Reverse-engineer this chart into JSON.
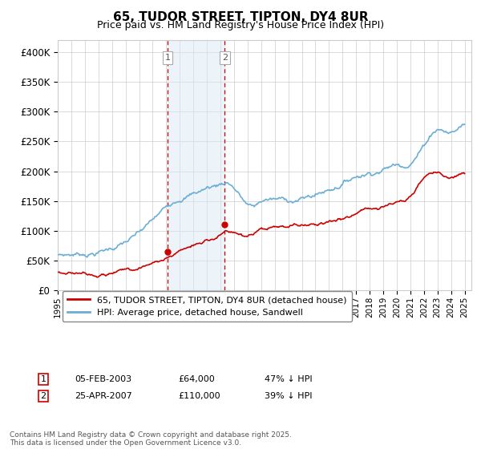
{
  "title": "65, TUDOR STREET, TIPTON, DY4 8UR",
  "subtitle": "Price paid vs. HM Land Registry's House Price Index (HPI)",
  "hpi_label": "HPI: Average price, detached house, Sandwell",
  "price_label": "65, TUDOR STREET, TIPTON, DY4 8UR (detached house)",
  "hpi_color": "#6baed6",
  "price_color": "#cc0000",
  "bg_color": "#ffffff",
  "grid_color": "#cccccc",
  "purchase1_date": 2003.09,
  "purchase1_price": 64000,
  "purchase1_hpi_pct": "47% ↓ HPI",
  "purchase1_date_str": "05-FEB-2003",
  "purchase2_date": 2007.32,
  "purchase2_price": 110000,
  "purchase2_hpi_pct": "39% ↓ HPI",
  "purchase2_date_str": "25-APR-2007",
  "ylim": [
    0,
    420000
  ],
  "yticks": [
    0,
    50000,
    100000,
    150000,
    200000,
    250000,
    300000,
    350000,
    400000
  ],
  "ytick_labels": [
    "£0",
    "£50K",
    "£100K",
    "£150K",
    "£200K",
    "£250K",
    "£300K",
    "£350K",
    "£400K"
  ],
  "footer": "Contains HM Land Registry data © Crown copyright and database right 2025.\nThis data is licensed under the Open Government Licence v3.0.",
  "highlight_color": "#daeaf4",
  "xlim_start": 1995.0,
  "xlim_end": 2025.5
}
